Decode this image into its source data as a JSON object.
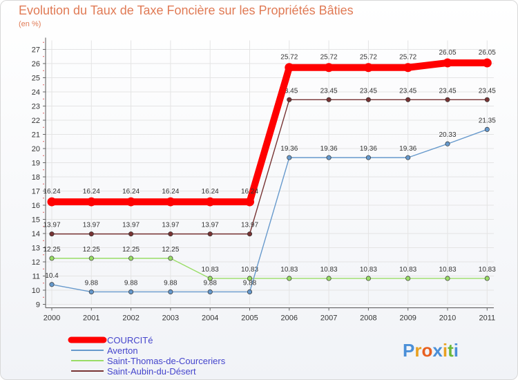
{
  "chart_data": {
    "type": "line",
    "title": "Evolution du Taux de Taxe Foncière sur les Propriétés Bâties",
    "ylabel": "(en %)",
    "xlabel": "",
    "ylim": [
      9,
      27
    ],
    "yticks": [
      9,
      10,
      11,
      12,
      13,
      14,
      15,
      16,
      17,
      18,
      19,
      20,
      21,
      22,
      23,
      24,
      25,
      26,
      27
    ],
    "categories": [
      "2000",
      "2001",
      "2002",
      "2003",
      "2004",
      "2005",
      "2006",
      "2007",
      "2008",
      "2009",
      "2010",
      "2011"
    ],
    "series": [
      {
        "name": "COURCITé",
        "color": "#ff0000",
        "values": [
          16.24,
          16.24,
          16.24,
          16.24,
          16.24,
          16.24,
          25.72,
          25.72,
          25.72,
          25.72,
          26.05,
          26.05
        ],
        "labels": [
          "16.24",
          "16.24",
          "16.24",
          "16.24",
          "16.24",
          "16.24",
          "25.72",
          "25.72",
          "25.72",
          "25.72",
          "26.05",
          "26.05"
        ]
      },
      {
        "name": "Averton",
        "color": "#6699cc",
        "values": [
          10.4,
          9.88,
          9.88,
          9.88,
          9.88,
          9.88,
          19.36,
          19.36,
          19.36,
          19.36,
          20.33,
          21.35
        ],
        "labels": [
          "10.4",
          "9.88",
          "9.88",
          "9.88",
          "9.88",
          "9.88",
          "19.36",
          "19.36",
          "19.36",
          "19.36",
          "20.33",
          "21.35"
        ]
      },
      {
        "name": "Saint-Thomas-de-Courceriers",
        "color": "#99dd66",
        "values": [
          12.25,
          12.25,
          12.25,
          12.25,
          10.83,
          10.83,
          10.83,
          10.83,
          10.83,
          10.83,
          10.83,
          10.83
        ],
        "labels": [
          "12.25",
          "12.25",
          "12.25",
          "12.25",
          "10.83",
          "10.83",
          "10.83",
          "10.83",
          "10.83",
          "10.83",
          "10.83",
          "10.83"
        ]
      },
      {
        "name": "Saint-Aubin-du-Désert",
        "color": "#773333",
        "values": [
          13.97,
          13.97,
          13.97,
          13.97,
          13.97,
          13.97,
          23.45,
          23.45,
          23.45,
          23.45,
          23.45,
          23.45
        ],
        "labels": [
          "13.97",
          "13.97",
          "13.97",
          "13.97",
          "13.97",
          "13.97",
          "23.45",
          "23.45",
          "23.45",
          "23.45",
          "23.45",
          "23.45"
        ]
      }
    ]
  },
  "branding": {
    "logo_text": "Proxiti",
    "logo_letters": [
      "P",
      "r",
      "o",
      "x",
      "i",
      "t",
      "i"
    ],
    "logo_colors": [
      "#4a8fd8",
      "#e8a020",
      "#e86020",
      "#4a8fd8",
      "#e8a020",
      "#6cb83a",
      "#4a8fd8"
    ]
  }
}
